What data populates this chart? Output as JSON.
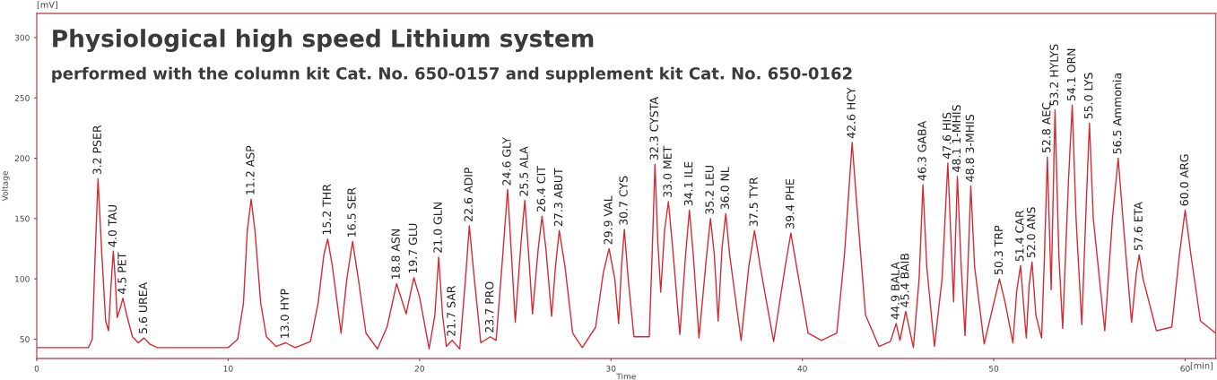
{
  "chart_data": {
    "type": "line",
    "title": "Physiological high speed Lithium system",
    "subtitle": "performed with the column kit Cat. No. 650-0157 and supplement kit Cat. No. 650-0162",
    "xlabel": "Time",
    "ylabel": "Voltage",
    "xlim": [
      0,
      61.6
    ],
    "ylim": [
      34,
      320
    ],
    "xticks": [
      0,
      10,
      20,
      30,
      40,
      50,
      60
    ],
    "yticks": [
      50,
      100,
      150,
      200,
      250,
      300
    ],
    "grid": false,
    "legend": false,
    "marker": "none",
    "line_style": "solid",
    "series": [
      {
        "color": "#d42a33",
        "x": [
          0,
          2.7,
          2.9,
          3.05,
          3.2,
          3.4,
          3.6,
          3.75,
          3.9,
          4.0,
          4.1,
          4.2,
          4.35,
          4.5,
          4.7,
          5.0,
          5.3,
          5.6,
          5.9,
          6.3,
          10.0,
          10.5,
          10.8,
          11.0,
          11.2,
          11.4,
          11.7,
          12.0,
          12.5,
          13.0,
          13.5,
          14.3,
          14.7,
          15.0,
          15.2,
          15.45,
          15.9,
          16.2,
          16.5,
          16.8,
          17.2,
          17.8,
          18.3,
          18.8,
          19.3,
          19.7,
          20.0,
          20.5,
          20.8,
          21.0,
          21.2,
          21.4,
          21.7,
          22.1,
          22.4,
          22.6,
          22.8,
          23.2,
          23.7,
          24.0,
          24.3,
          24.6,
          24.8,
          25.0,
          25.3,
          25.5,
          25.7,
          25.9,
          26.2,
          26.4,
          26.6,
          26.9,
          27.1,
          27.3,
          27.6,
          28.0,
          28.5,
          29.2,
          29.6,
          29.9,
          30.2,
          30.4,
          30.55,
          30.7,
          30.9,
          31.2,
          32.0,
          32.15,
          32.3,
          32.45,
          32.6,
          32.8,
          33.0,
          33.2,
          33.6,
          33.9,
          34.1,
          34.3,
          34.6,
          35.0,
          35.2,
          35.4,
          35.6,
          35.8,
          36.0,
          36.2,
          36.8,
          37.2,
          37.5,
          37.8,
          38.5,
          39.1,
          39.4,
          39.7,
          40.3,
          41.0,
          41.8,
          42.2,
          42.6,
          42.9,
          43.3,
          44.0,
          44.6,
          44.9,
          45.1,
          45.4,
          45.8,
          46.1,
          46.3,
          46.5,
          46.9,
          47.3,
          47.6,
          47.9,
          48.1,
          48.3,
          48.5,
          48.65,
          48.8,
          49.0,
          49.5,
          50.0,
          50.3,
          50.6,
          51.0,
          51.2,
          51.4,
          51.6,
          51.7,
          51.85,
          52.0,
          52.2,
          52.5,
          52.65,
          52.8,
          53.0,
          53.2,
          53.4,
          53.6,
          53.9,
          54.1,
          54.3,
          54.6,
          54.85,
          55.0,
          55.2,
          55.8,
          56.2,
          56.5,
          56.8,
          57.2,
          57.45,
          57.6,
          57.8,
          58.5,
          59.3,
          59.7,
          60.0,
          60.3,
          60.8,
          61.6
        ],
        "values": [
          43,
          43,
          50,
          120,
          183,
          120,
          65,
          57,
          100,
          123,
          100,
          68,
          75,
          84,
          70,
          52,
          47,
          51,
          46,
          43,
          43,
          50,
          80,
          140,
          166,
          140,
          80,
          52,
          44,
          47,
          43,
          48,
          80,
          120,
          133,
          110,
          55,
          100,
          131,
          100,
          55,
          42,
          60,
          96,
          71,
          101,
          85,
          42,
          70,
          118,
          70,
          44,
          49,
          42,
          100,
          144,
          110,
          47,
          52,
          49,
          110,
          174,
          120,
          64,
          130,
          165,
          120,
          71,
          125,
          152,
          125,
          69,
          110,
          140,
          110,
          55,
          43,
          60,
          105,
          125,
          100,
          63,
          110,
          141,
          100,
          52,
          52,
          120,
          195,
          130,
          89,
          140,
          164,
          130,
          54,
          120,
          157,
          120,
          51,
          120,
          150,
          120,
          65,
          125,
          154,
          120,
          49,
          110,
          140,
          110,
          48,
          110,
          138,
          110,
          55,
          49,
          55,
          120,
          213,
          150,
          70,
          44,
          48,
          63,
          49,
          73,
          43,
          100,
          178,
          110,
          44,
          100,
          196,
          81,
          185,
          110,
          53,
          110,
          177,
          110,
          46,
          80,
          100,
          80,
          47,
          90,
          111,
          70,
          51,
          95,
          114,
          70,
          51,
          120,
          201,
          91,
          240,
          120,
          59,
          180,
          244,
          150,
          62,
          170,
          229,
          150,
          57,
          150,
          200,
          140,
          64,
          105,
          120,
          100,
          57,
          60,
          120,
          157,
          120,
          65,
          55
        ]
      }
    ],
    "annotations": [
      "[mV]",
      "[min]",
      {
        "text": "3.2 PSER",
        "x": 3.2,
        "y": 183
      },
      {
        "text": "4.0 TAU",
        "x": 4.0,
        "y": 123
      },
      {
        "text": "4.5 PET",
        "x": 4.5,
        "y": 84
      },
      {
        "text": "5.6 UREA",
        "x": 5.6,
        "y": 51
      },
      {
        "text": "11.2 ASP",
        "x": 11.2,
        "y": 166
      },
      {
        "text": "13.0 HYP",
        "x": 13.0,
        "y": 47
      },
      {
        "text": "15.2 THR",
        "x": 15.2,
        "y": 133
      },
      {
        "text": "16.5 SER",
        "x": 16.5,
        "y": 131
      },
      {
        "text": "18.8 ASN",
        "x": 18.8,
        "y": 96
      },
      {
        "text": "19.7 GLU",
        "x": 19.7,
        "y": 101
      },
      {
        "text": "21.0 GLN",
        "x": 21.0,
        "y": 118
      },
      {
        "text": "21.7 SAR",
        "x": 21.7,
        "y": 49
      },
      {
        "text": "22.6 ADIP",
        "x": 22.6,
        "y": 144
      },
      {
        "text": "23.7 PRO",
        "x": 23.7,
        "y": 52
      },
      {
        "text": "24.6 GLY",
        "x": 24.6,
        "y": 174
      },
      {
        "text": "25.5 ALA",
        "x": 25.5,
        "y": 165
      },
      {
        "text": "26.4 CIT",
        "x": 26.4,
        "y": 152
      },
      {
        "text": "27.3 ABUT",
        "x": 27.3,
        "y": 140
      },
      {
        "text": "29.9 VAL",
        "x": 29.9,
        "y": 125
      },
      {
        "text": "30.7 CYS",
        "x": 30.7,
        "y": 141
      },
      {
        "text": "32.3 CYSTA",
        "x": 32.3,
        "y": 195
      },
      {
        "text": "33.0 MET",
        "x": 33.0,
        "y": 164
      },
      {
        "text": "34.1 ILE",
        "x": 34.1,
        "y": 157
      },
      {
        "text": "35.2 LEU",
        "x": 35.2,
        "y": 150
      },
      {
        "text": "36.0 NL",
        "x": 36.0,
        "y": 154
      },
      {
        "text": "37.5 TYR",
        "x": 37.5,
        "y": 140
      },
      {
        "text": "39.4 PHE",
        "x": 39.4,
        "y": 138
      },
      {
        "text": "42.6 HCY",
        "x": 42.6,
        "y": 213
      },
      {
        "text": "44.9 BALA",
        "x": 44.9,
        "y": 63
      },
      {
        "text": "45.4 BAIB",
        "x": 45.4,
        "y": 73
      },
      {
        "text": "46.3 GABA",
        "x": 46.3,
        "y": 178
      },
      {
        "text": "47.6 HIS",
        "x": 47.6,
        "y": 196
      },
      {
        "text": "48.1 1-MHIS",
        "x": 48.1,
        "y": 185
      },
      {
        "text": "48.8 3-MHIS",
        "x": 48.8,
        "y": 177
      },
      {
        "text": "50.3 TRP",
        "x": 50.3,
        "y": 100
      },
      {
        "text": "51.4 CAR",
        "x": 51.4,
        "y": 111
      },
      {
        "text": "52.0 ANS",
        "x": 52.0,
        "y": 114
      },
      {
        "text": "52.8 AEC",
        "x": 52.8,
        "y": 201
      },
      {
        "text": "53.2 HYLYS",
        "x": 53.2,
        "y": 240
      },
      {
        "text": "54.1 ORN",
        "x": 54.1,
        "y": 244
      },
      {
        "text": "55.0 LYS",
        "x": 55.0,
        "y": 229
      },
      {
        "text": "56.5 Ammonia",
        "x": 56.5,
        "y": 200
      },
      {
        "text": "57.6 ETA",
        "x": 57.6,
        "y": 120
      },
      {
        "text": "60.0 ARG",
        "x": 60.0,
        "y": 157
      }
    ]
  }
}
